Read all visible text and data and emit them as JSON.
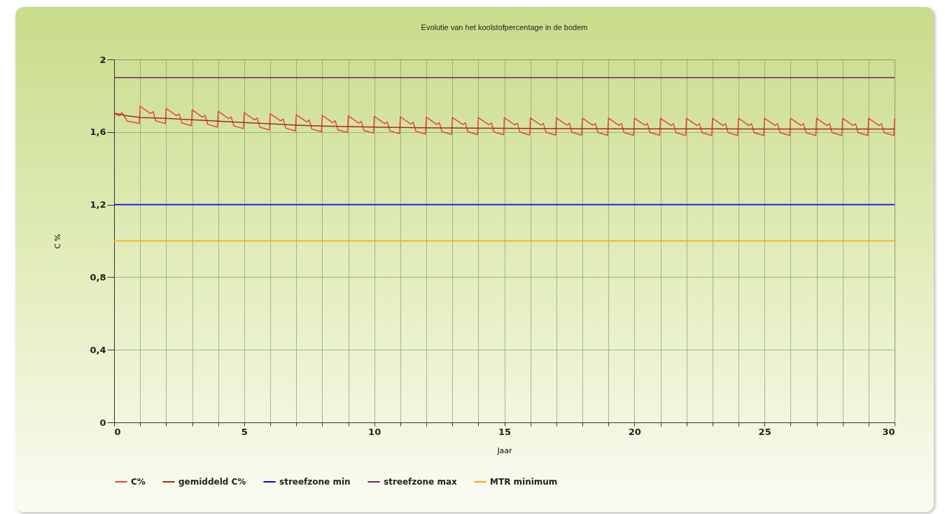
{
  "chart_data": {
    "type": "line",
    "title": "Evolutie van het koolstofpercentage in de bodem",
    "xlabel": "Jaar",
    "ylabel": "C %",
    "xlim": [
      0,
      30
    ],
    "xticks": [
      0,
      {
        "value": 1,
        "label": null
      },
      {
        "value": 2,
        "label": null
      },
      {
        "value": 3,
        "label": null
      },
      {
        "value": 4,
        "label": null
      },
      5,
      {
        "value": 6,
        "label": null
      },
      {
        "value": 7,
        "label": null
      },
      {
        "value": 8,
        "label": null
      },
      {
        "value": 9,
        "label": null
      },
      10,
      {
        "value": 11,
        "label": null
      },
      {
        "value": 12,
        "label": null
      },
      {
        "value": 13,
        "label": null
      },
      {
        "value": 14,
        "label": null
      },
      15,
      {
        "value": 16,
        "label": null
      },
      {
        "value": 17,
        "label": null
      },
      {
        "value": 18,
        "label": null
      },
      {
        "value": 19,
        "label": null
      },
      20,
      {
        "value": 21,
        "label": null
      },
      {
        "value": 22,
        "label": null
      },
      {
        "value": 23,
        "label": null
      },
      {
        "value": 24,
        "label": null
      },
      25,
      {
        "value": 26,
        "label": null
      },
      {
        "value": 27,
        "label": null
      },
      {
        "value": 28,
        "label": null
      },
      {
        "value": 29,
        "label": null
      },
      30
    ],
    "ylim": [
      0,
      2
    ],
    "yticks": [
      0,
      {
        "value": 0.4,
        "label": "0,4"
      },
      {
        "value": 0.8,
        "label": "0,8"
      },
      {
        "value": 1.2,
        "label": "1,2"
      },
      {
        "value": 1.6,
        "label": "1,6"
      },
      2
    ],
    "grid": true,
    "legend": "bottom",
    "marker": "none",
    "series": [
      {
        "name": "C%",
        "color": "#ee4433",
        "x": [
          0,
          0.2,
          0.3,
          0.4,
          0.5,
          0.97,
          1,
          1.4,
          1.5,
          1.6,
          1.97,
          2,
          2.4,
          2.5,
          2.6,
          2.97,
          3,
          3.4,
          3.5,
          3.6,
          3.97,
          4,
          4.4,
          4.5,
          4.6,
          4.97,
          5,
          5.4,
          5.5,
          5.6,
          5.97,
          6,
          6.4,
          6.5,
          6.6,
          6.97,
          7,
          7.4,
          7.5,
          7.6,
          7.97,
          8,
          8.4,
          8.5,
          8.6,
          8.97,
          9,
          9.4,
          9.5,
          9.6,
          9.97,
          10,
          10.4,
          10.5,
          10.6,
          10.97,
          11,
          11.4,
          11.5,
          11.6,
          11.97,
          12,
          12.4,
          12.5,
          12.6,
          12.97,
          13,
          13.4,
          13.5,
          13.6,
          13.97,
          14,
          14.4,
          14.5,
          14.6,
          14.97,
          15,
          15.4,
          15.5,
          15.6,
          15.97,
          16,
          16.4,
          16.5,
          16.6,
          16.97,
          17,
          17.4,
          17.5,
          17.6,
          17.97,
          18,
          18.4,
          18.5,
          18.6,
          18.97,
          19,
          19.4,
          19.5,
          19.6,
          19.97,
          20,
          20.4,
          20.5,
          20.6,
          20.97,
          21,
          21.4,
          21.5,
          21.6,
          21.97,
          22,
          22.4,
          22.5,
          22.6,
          22.97,
          23,
          23.4,
          23.5,
          23.6,
          23.97,
          24,
          24.4,
          24.5,
          24.6,
          24.97,
          25,
          25.4,
          25.5,
          25.6,
          25.97,
          26,
          26.4,
          26.5,
          26.6,
          26.97,
          27,
          27.4,
          27.5,
          27.6,
          27.97,
          28,
          28.4,
          28.5,
          28.6,
          28.97,
          29,
          29.4,
          29.5,
          29.6,
          29.97,
          30
        ],
        "values": [
          1.703,
          1.69,
          1.707,
          1.685,
          1.661,
          1.647,
          1.742,
          1.702,
          1.712,
          1.662,
          1.647,
          1.73,
          1.69,
          1.7,
          1.65,
          1.635,
          1.722,
          1.682,
          1.692,
          1.642,
          1.627,
          1.714,
          1.674,
          1.684,
          1.634,
          1.619,
          1.707,
          1.667,
          1.677,
          1.627,
          1.612,
          1.701,
          1.661,
          1.671,
          1.621,
          1.606,
          1.696,
          1.656,
          1.666,
          1.616,
          1.601,
          1.692,
          1.652,
          1.662,
          1.612,
          1.597,
          1.689,
          1.649,
          1.659,
          1.609,
          1.594,
          1.686,
          1.646,
          1.656,
          1.606,
          1.591,
          1.684,
          1.644,
          1.654,
          1.604,
          1.589,
          1.682,
          1.642,
          1.652,
          1.602,
          1.587,
          1.681,
          1.641,
          1.651,
          1.601,
          1.586,
          1.68,
          1.64,
          1.65,
          1.6,
          1.585,
          1.679,
          1.639,
          1.649,
          1.599,
          1.584,
          1.678,
          1.638,
          1.648,
          1.598,
          1.583,
          1.678,
          1.638,
          1.648,
          1.598,
          1.583,
          1.677,
          1.637,
          1.647,
          1.597,
          1.582,
          1.677,
          1.637,
          1.647,
          1.597,
          1.582,
          1.677,
          1.637,
          1.647,
          1.597,
          1.582,
          1.676,
          1.636,
          1.646,
          1.596,
          1.581,
          1.676,
          1.636,
          1.646,
          1.596,
          1.581,
          1.676,
          1.636,
          1.646,
          1.596,
          1.581,
          1.676,
          1.636,
          1.646,
          1.596,
          1.581,
          1.676,
          1.636,
          1.646,
          1.596,
          1.581,
          1.676,
          1.636,
          1.646,
          1.596,
          1.581,
          1.676,
          1.636,
          1.646,
          1.596,
          1.581,
          1.676,
          1.636,
          1.646,
          1.596,
          1.581,
          1.676,
          1.636,
          1.646,
          1.596,
          1.581,
          1.676
        ]
      },
      {
        "name": "gemiddeld C%",
        "color": "#a52a2a",
        "x": [
          0,
          0.5,
          1,
          2,
          3,
          4,
          5,
          6,
          7,
          8,
          10,
          12,
          15,
          20,
          25,
          30
        ],
        "values": [
          1.703,
          1.69,
          1.68,
          1.675,
          1.668,
          1.66,
          1.652,
          1.645,
          1.638,
          1.633,
          1.627,
          1.623,
          1.62,
          1.618,
          1.617,
          1.617
        ]
      },
      {
        "name": "streefzone min",
        "color": "#0000ff",
        "x": [
          0,
          30
        ],
        "values": [
          1.2,
          1.2
        ]
      },
      {
        "name": "streefzone max",
        "color": "#7a1f5c",
        "x": [
          0,
          30
        ],
        "values": [
          1.9,
          1.9
        ]
      },
      {
        "name": "MTR minimum",
        "color": "#ffa500",
        "x": [
          0,
          30
        ],
        "values": [
          1,
          1
        ]
      }
    ]
  }
}
